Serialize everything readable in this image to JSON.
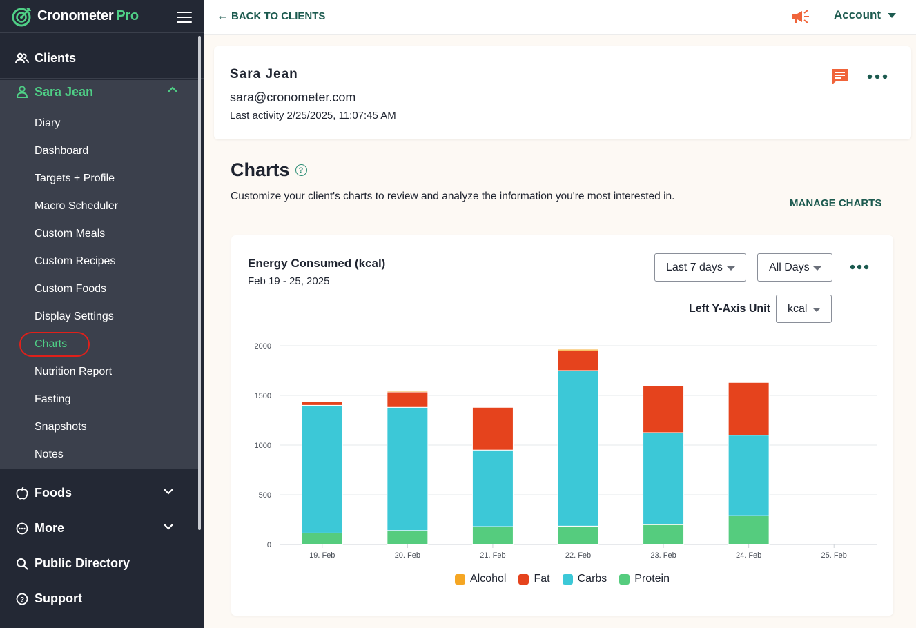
{
  "brand": {
    "name": "Cronometer",
    "suffix": "Pro"
  },
  "nav": {
    "clients": "Clients",
    "client_name": "Sara Jean",
    "sub_items": [
      "Diary",
      "Dashboard",
      "Targets + Profile",
      "Macro Scheduler",
      "Custom Meals",
      "Custom Recipes",
      "Custom Foods",
      "Display Settings",
      "Charts",
      "Nutrition Report",
      "Fasting",
      "Snapshots",
      "Notes"
    ],
    "active_item": "Charts",
    "foods": "Foods",
    "more": "More",
    "public_directory": "Public Directory",
    "support": "Support"
  },
  "topbar": {
    "back_label": "BACK TO CLIENTS",
    "account_label": "Account"
  },
  "client": {
    "name": "Sara Jean",
    "email": "sara@cronometer.com",
    "last_activity": "Last activity 2/25/2025, 11:07:45 AM"
  },
  "charts_section": {
    "title": "Charts",
    "help": "?",
    "description": "Customize your client's charts to review and analyze the information you're most interested in.",
    "manage_label": "MANAGE CHARTS"
  },
  "chart_card": {
    "range_select": "Last 7 days",
    "days_select": "All Days",
    "yaxis_unit_label": "Left Y-Axis Unit",
    "unit_select": "kcal"
  },
  "colors": {
    "alcohol": "#f5a623",
    "fat": "#e5431d",
    "carbs": "#3cc8d7",
    "protein": "#55cc7e",
    "accent_green": "#4fcf86",
    "dark_teal": "#1c5a4f"
  },
  "chart_data": {
    "type": "bar",
    "stacked": true,
    "title": "Energy Consumed (kcal)",
    "subtitle": "Feb 19 - 25, 2025",
    "categories": [
      "19. Feb",
      "20. Feb",
      "21. Feb",
      "22. Feb",
      "23. Feb",
      "24. Feb",
      "25. Feb"
    ],
    "ylim": [
      0,
      2000
    ],
    "yticks": [
      0,
      500,
      1000,
      1500,
      2000
    ],
    "series": [
      {
        "name": "Protein",
        "color": "#55cc7e",
        "values": [
          115,
          140,
          180,
          185,
          200,
          290,
          0
        ]
      },
      {
        "name": "Carbs",
        "color": "#3cc8d7",
        "values": [
          1285,
          1240,
          770,
          1565,
          925,
          810,
          0
        ]
      },
      {
        "name": "Fat",
        "color": "#e5431d",
        "values": [
          40,
          155,
          430,
          200,
          475,
          530,
          0
        ]
      },
      {
        "name": "Alcohol",
        "color": "#f5a623",
        "values": [
          0,
          10,
          0,
          15,
          0,
          0,
          0
        ]
      }
    ],
    "legend_order": [
      "Alcohol",
      "Fat",
      "Carbs",
      "Protein"
    ],
    "grid": true,
    "legend_position": "bottom"
  }
}
